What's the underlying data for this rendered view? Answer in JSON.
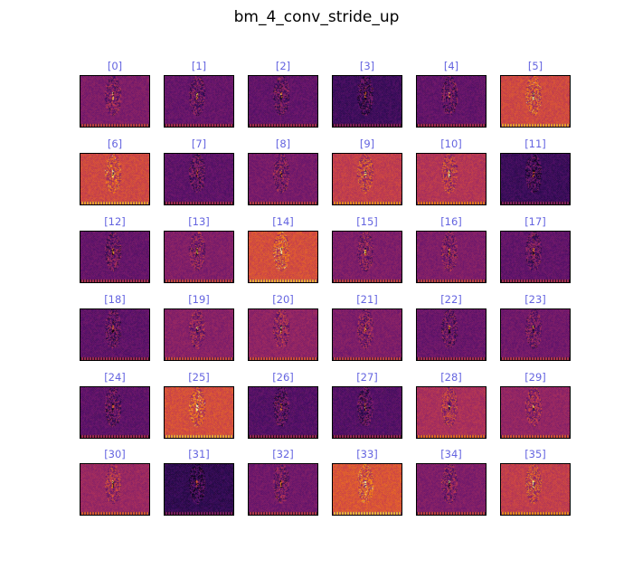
{
  "figure": {
    "title": "bm_4_conv_stride_up"
  },
  "colormap": "inferno",
  "channels": [
    {
      "label": "[0]",
      "level": 0.42
    },
    {
      "label": "[1]",
      "level": 0.35
    },
    {
      "label": "[2]",
      "level": 0.34
    },
    {
      "label": "[3]",
      "level": 0.24
    },
    {
      "label": "[4]",
      "level": 0.34
    },
    {
      "label": "[5]",
      "level": 0.66
    },
    {
      "label": "[6]",
      "level": 0.66
    },
    {
      "label": "[7]",
      "level": 0.33
    },
    {
      "label": "[8]",
      "level": 0.4
    },
    {
      "label": "[9]",
      "level": 0.62
    },
    {
      "label": "[10]",
      "level": 0.58
    },
    {
      "label": "[11]",
      "level": 0.23
    },
    {
      "label": "[12]",
      "level": 0.35
    },
    {
      "label": "[13]",
      "level": 0.43
    },
    {
      "label": "[14]",
      "level": 0.68
    },
    {
      "label": "[15]",
      "level": 0.42
    },
    {
      "label": "[16]",
      "level": 0.42
    },
    {
      "label": "[17]",
      "level": 0.34
    },
    {
      "label": "[18]",
      "level": 0.33
    },
    {
      "label": "[19]",
      "level": 0.45
    },
    {
      "label": "[20]",
      "level": 0.47
    },
    {
      "label": "[21]",
      "level": 0.42
    },
    {
      "label": "[22]",
      "level": 0.36
    },
    {
      "label": "[23]",
      "level": 0.38
    },
    {
      "label": "[24]",
      "level": 0.33
    },
    {
      "label": "[25]",
      "level": 0.68
    },
    {
      "label": "[26]",
      "level": 0.3
    },
    {
      "label": "[27]",
      "level": 0.3
    },
    {
      "label": "[28]",
      "level": 0.55
    },
    {
      "label": "[29]",
      "level": 0.48
    },
    {
      "label": "[30]",
      "level": 0.5
    },
    {
      "label": "[31]",
      "level": 0.2
    },
    {
      "label": "[32]",
      "level": 0.38
    },
    {
      "label": "[33]",
      "level": 0.7
    },
    {
      "label": "[34]",
      "level": 0.42
    },
    {
      "label": "[35]",
      "level": 0.62
    }
  ]
}
